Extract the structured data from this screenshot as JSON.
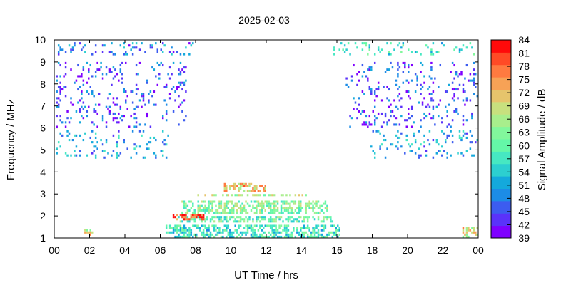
{
  "chart_data": {
    "type": "heatmap",
    "title": "2025-02-03",
    "xlabel": "UT Time / hrs",
    "ylabel": "Frequency / MHz",
    "xlim": [
      0,
      24
    ],
    "ylim": [
      1,
      10
    ],
    "x_ticks": [
      "00",
      "02",
      "04",
      "06",
      "08",
      "10",
      "12",
      "14",
      "16",
      "18",
      "20",
      "22",
      "00"
    ],
    "y_ticks": [
      "1",
      "2",
      "3",
      "4",
      "5",
      "6",
      "7",
      "8",
      "9",
      "10"
    ],
    "colorbar": {
      "label": "Signal Amplitude / dB",
      "range": [
        39,
        84
      ],
      "ticks": [
        "39",
        "42",
        "45",
        "48",
        "51",
        "54",
        "57",
        "60",
        "63",
        "66",
        "69",
        "72",
        "75",
        "78",
        "81",
        "84"
      ],
      "colors": [
        "#7f00ff",
        "#5a32fa",
        "#3c5cf0",
        "#1c8ce6",
        "#14a9dc",
        "#2ccfd0",
        "#46e8c2",
        "#64f7a8",
        "#82f79c",
        "#a8ee8c",
        "#c8e07e",
        "#e6c46c",
        "#f7a256",
        "#ff7a40",
        "#ff4a26",
        "#ff0a0a"
      ]
    },
    "regions": [
      {
        "t0": 8.0,
        "t1": 14.4,
        "f0": 2.9,
        "f1": 3.0,
        "level": 66
      },
      {
        "t0": 9.5,
        "t1": 12.0,
        "f0": 3.1,
        "f1": 3.5,
        "level": 72
      },
      {
        "t0": 7.2,
        "t1": 15.5,
        "f0": 2.1,
        "f1": 2.7,
        "level": 63
      },
      {
        "t0": 7.0,
        "t1": 15.8,
        "f0": 1.7,
        "f1": 2.0,
        "level": 60
      },
      {
        "t0": 6.3,
        "t1": 16.2,
        "f0": 1.0,
        "f1": 1.6,
        "level": 57
      },
      {
        "t0": 6.7,
        "t1": 8.5,
        "f0": 1.8,
        "f1": 2.1,
        "level": 78
      },
      {
        "t0": 1.6,
        "t1": 2.2,
        "f0": 1.0,
        "f1": 1.4,
        "level": 69
      },
      {
        "t0": 23.1,
        "t1": 24.0,
        "f0": 1.0,
        "f1": 1.5,
        "level": 69
      },
      {
        "t0": 0.1,
        "t1": 6.5,
        "f0": 4.6,
        "f1": 5.9,
        "level": 51
      },
      {
        "t0": 17.9,
        "t1": 24.0,
        "f0": 4.6,
        "f1": 5.9,
        "level": 51
      },
      {
        "t0": 0.1,
        "t1": 8.0,
        "f0": 9.3,
        "f1": 9.9,
        "level": 48
      },
      {
        "t0": 15.8,
        "t1": 24.0,
        "f0": 9.3,
        "f1": 9.9,
        "level": 57
      },
      {
        "t0": 0.1,
        "t1": 7.5,
        "f0": 6.0,
        "f1": 9.0,
        "level": 45
      },
      {
        "t0": 16.5,
        "t1": 24.0,
        "f0": 6.0,
        "f1": 9.0,
        "level": 45
      }
    ]
  }
}
